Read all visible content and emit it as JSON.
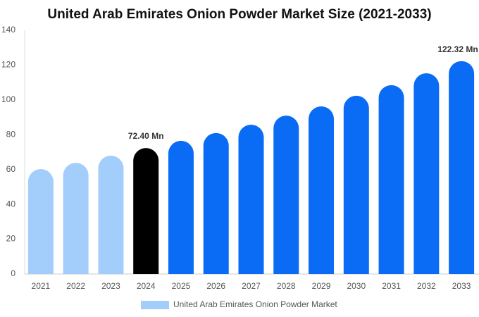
{
  "chart_data": {
    "type": "bar",
    "title": "United Arab Emirates Onion Powder Market Size (2021-2033)",
    "categories": [
      "2021",
      "2022",
      "2023",
      "2024",
      "2025",
      "2026",
      "2027",
      "2028",
      "2029",
      "2030",
      "2031",
      "2032",
      "2033"
    ],
    "series": [
      {
        "name": "United Arab Emirates Onion Powder Market",
        "color": "#a3cdfb",
        "values": [
          60.3,
          63.9,
          68,
          72.4,
          76.5,
          81,
          85.8,
          91,
          96.3,
          102.4,
          108.5,
          115.3,
          122.32
        ],
        "value_labels": [
          null,
          null,
          null,
          "72.40 Mn",
          null,
          null,
          null,
          null,
          null,
          null,
          null,
          null,
          "122.32 Mn"
        ],
        "colors": [
          "#a3cdfb",
          "#a3cdfb",
          "#a3cdfb",
          "#000000",
          "#0a6cf5",
          "#0a6cf5",
          "#0a6cf5",
          "#0a6cf5",
          "#0a6cf5",
          "#0a6cf5",
          "#0a6cf5",
          "#0a6cf5",
          "#0a6cf5"
        ]
      }
    ],
    "ylim": [
      0,
      140
    ],
    "yticks": [
      0,
      20,
      40,
      60,
      80,
      100,
      120,
      140
    ],
    "grid": false
  }
}
